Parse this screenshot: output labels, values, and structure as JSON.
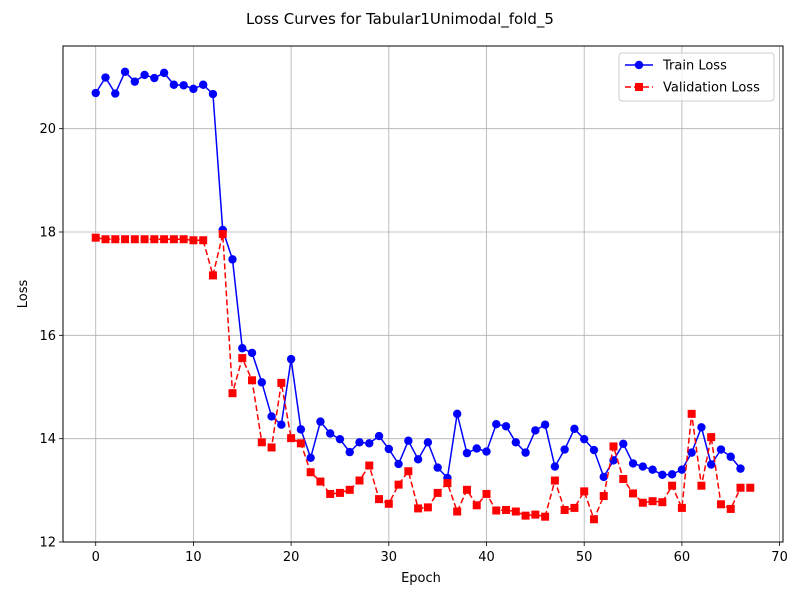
{
  "chart_data": {
    "type": "line",
    "title": "Loss Curves for Tabular1Unimodal_fold_5",
    "xlabel": "Epoch",
    "ylabel": "Loss",
    "xlim": [
      -3.35,
      70.35
    ],
    "ylim": [
      12,
      21.6
    ],
    "xticks": [
      0,
      10,
      20,
      30,
      40,
      50,
      60,
      70
    ],
    "yticks": [
      12,
      14,
      16,
      18,
      20
    ],
    "grid": true,
    "legend_position": "top-right",
    "series": [
      {
        "name": "Train Loss",
        "color": "#0000ff",
        "line_style": "solid",
        "marker": "circle",
        "x": [
          0,
          1,
          2,
          3,
          4,
          5,
          6,
          7,
          8,
          9,
          10,
          11,
          12,
          13,
          14,
          15,
          16,
          17,
          18,
          19,
          20,
          21,
          22,
          23,
          24,
          25,
          26,
          27,
          28,
          29,
          30,
          31,
          32,
          33,
          34,
          35,
          36,
          37,
          38,
          39,
          40,
          41,
          42,
          43,
          44,
          45,
          46,
          47,
          48,
          49,
          50,
          51,
          52,
          53,
          54,
          55,
          56,
          57,
          58,
          59,
          60,
          61,
          62,
          63,
          64,
          65,
          66
        ],
        "values": [
          20.69,
          20.99,
          20.68,
          21.1,
          20.91,
          21.04,
          20.98,
          21.08,
          20.85,
          20.84,
          20.77,
          20.85,
          20.67,
          18.04,
          17.47,
          15.75,
          15.66,
          15.09,
          14.43,
          14.27,
          15.54,
          14.18,
          13.63,
          14.33,
          14.1,
          13.99,
          13.74,
          13.93,
          13.91,
          14.05,
          13.8,
          13.51,
          13.96,
          13.6,
          13.93,
          13.44,
          13.24,
          14.48,
          13.72,
          13.81,
          13.75,
          14.28,
          14.24,
          13.93,
          13.73,
          14.16,
          14.27,
          13.46,
          13.79,
          14.19,
          13.99,
          13.78,
          13.26,
          13.58,
          13.9,
          13.52,
          13.46,
          13.4,
          13.3,
          13.31,
          13.4,
          13.73,
          14.22,
          13.5,
          13.79,
          13.65,
          13.42
        ]
      },
      {
        "name": "Validation Loss",
        "color": "#ff0000",
        "line_style": "dashed",
        "marker": "square",
        "x": [
          0,
          1,
          2,
          3,
          4,
          5,
          6,
          7,
          8,
          9,
          10,
          11,
          12,
          13,
          14,
          15,
          16,
          17,
          18,
          19,
          20,
          21,
          22,
          23,
          24,
          25,
          26,
          27,
          28,
          29,
          30,
          31,
          32,
          33,
          34,
          35,
          36,
          37,
          38,
          39,
          40,
          41,
          42,
          43,
          44,
          45,
          46,
          47,
          48,
          49,
          50,
          51,
          52,
          53,
          54,
          55,
          56,
          57,
          58,
          59,
          60,
          61,
          62,
          63,
          64,
          65,
          66,
          67
        ],
        "values": [
          17.89,
          17.86,
          17.86,
          17.86,
          17.86,
          17.86,
          17.86,
          17.86,
          17.86,
          17.86,
          17.84,
          17.84,
          17.16,
          17.96,
          14.88,
          15.56,
          15.13,
          13.93,
          13.83,
          15.08,
          14.01,
          13.91,
          13.35,
          13.17,
          12.93,
          12.95,
          13.01,
          13.19,
          13.48,
          12.83,
          12.74,
          13.11,
          13.37,
          12.65,
          12.67,
          12.95,
          13.14,
          12.59,
          13.01,
          12.71,
          12.93,
          12.61,
          12.62,
          12.59,
          12.51,
          12.53,
          12.49,
          13.19,
          12.62,
          12.66,
          12.98,
          12.44,
          12.89,
          13.85,
          13.22,
          12.94,
          12.76,
          12.79,
          12.77,
          13.09,
          12.66,
          14.48,
          13.09,
          14.03,
          12.73,
          12.64,
          13.05,
          13.05
        ]
      }
    ]
  }
}
